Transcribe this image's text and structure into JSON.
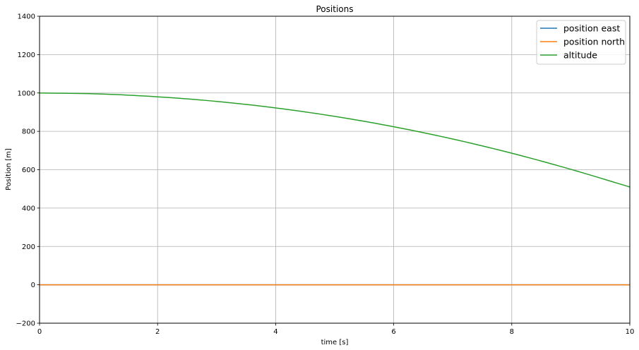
{
  "chart_data": {
    "type": "line",
    "title": "Positions",
    "xlabel": "time [s]",
    "ylabel": "Position [m]",
    "xlim": [
      0,
      10
    ],
    "ylim": [
      -200,
      1400
    ],
    "xticks": [
      0,
      2,
      4,
      6,
      8,
      10
    ],
    "yticks": [
      -200,
      0,
      200,
      400,
      600,
      800,
      1000,
      1200,
      1400
    ],
    "xtick_labels": [
      "0",
      "2",
      "4",
      "6",
      "8",
      "10"
    ],
    "ytick_labels": [
      "−200",
      "0",
      "200",
      "400",
      "600",
      "800",
      "1000",
      "1200",
      "1400"
    ],
    "grid": true,
    "legend_position": "top-right",
    "x": [
      0,
      1,
      2,
      3,
      4,
      5,
      6,
      7,
      8,
      9,
      10
    ],
    "series": [
      {
        "name": "position east",
        "color": "#1f77b4",
        "values": [
          0,
          0,
          0,
          0,
          0,
          0,
          0,
          0,
          0,
          0,
          0
        ]
      },
      {
        "name": "position north",
        "color": "#ff7f0e",
        "values": [
          0,
          0,
          0,
          0,
          0,
          0,
          0,
          0,
          0,
          0,
          0
        ]
      },
      {
        "name": "altitude",
        "color": "#2ca02c",
        "values": [
          1000,
          995,
          980,
          956,
          922,
          878,
          824,
          760,
          686,
          602,
          510
        ]
      }
    ]
  }
}
